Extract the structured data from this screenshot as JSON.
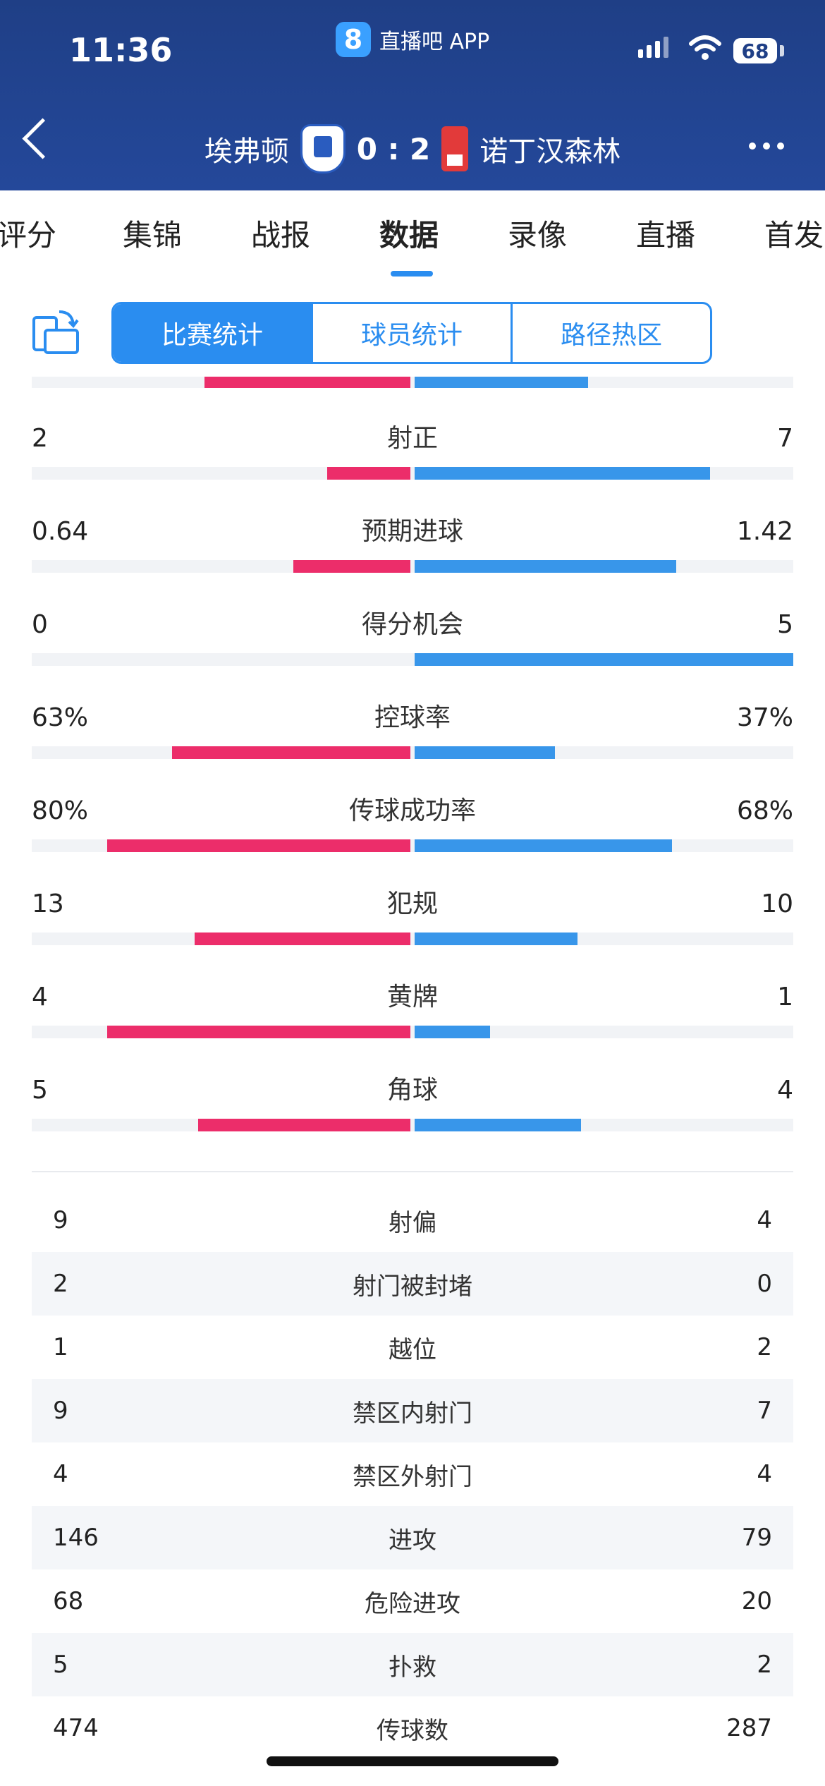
{
  "status_bar": {
    "time": "11:36",
    "app_logo": "8",
    "app_name": "直播吧 APP",
    "battery": "68"
  },
  "match": {
    "home_team": "埃弗顿",
    "score": "0 : 2",
    "away_team": "诺丁汉森林"
  },
  "tabs": [
    "评分",
    "集锦",
    "战报",
    "数据",
    "录像",
    "直播",
    "首发"
  ],
  "active_tab": "数据",
  "segments": [
    "比赛统计",
    "球员统计",
    "路径热区"
  ],
  "bar_stats": [
    {
      "label": "射正",
      "home": "2",
      "away": "7",
      "home_frac": 0.22,
      "away_frac": 0.78
    },
    {
      "label": "预期进球",
      "home": "0.64",
      "away": "1.42",
      "home_frac": 0.31,
      "away_frac": 0.69
    },
    {
      "label": "得分机会",
      "home": "0",
      "away": "5",
      "home_frac": 0.0,
      "away_frac": 1.0
    },
    {
      "label": "控球率",
      "home": "63%",
      "away": "37%",
      "home_frac": 0.63,
      "away_frac": 0.37
    },
    {
      "label": "传球成功率",
      "home": "80%",
      "away": "68%",
      "home_frac": 0.8,
      "away_frac": 0.68
    },
    {
      "label": "犯规",
      "home": "13",
      "away": "10",
      "home_frac": 0.57,
      "away_frac": 0.43
    },
    {
      "label": "黄牌",
      "home": "4",
      "away": "1",
      "home_frac": 0.8,
      "away_frac": 0.2
    },
    {
      "label": "角球",
      "home": "5",
      "away": "4",
      "home_frac": 0.56,
      "away_frac": 0.44
    }
  ],
  "table_stats": [
    {
      "label": "射偏",
      "home": "9",
      "away": "4"
    },
    {
      "label": "射门被封堵",
      "home": "2",
      "away": "0"
    },
    {
      "label": "越位",
      "home": "1",
      "away": "2"
    },
    {
      "label": "禁区内射门",
      "home": "9",
      "away": "7"
    },
    {
      "label": "禁区外射门",
      "home": "4",
      "away": "4"
    },
    {
      "label": "进攻",
      "home": "146",
      "away": "79"
    },
    {
      "label": "危险进攻",
      "home": "68",
      "away": "20"
    },
    {
      "label": "扑救",
      "home": "5",
      "away": "2"
    },
    {
      "label": "传球数",
      "home": "474",
      "away": "287"
    }
  ],
  "colors": {
    "home": "#ec2d6a",
    "away": "#3896ea",
    "header": "#1f3f86",
    "accent": "#2a8df0"
  }
}
